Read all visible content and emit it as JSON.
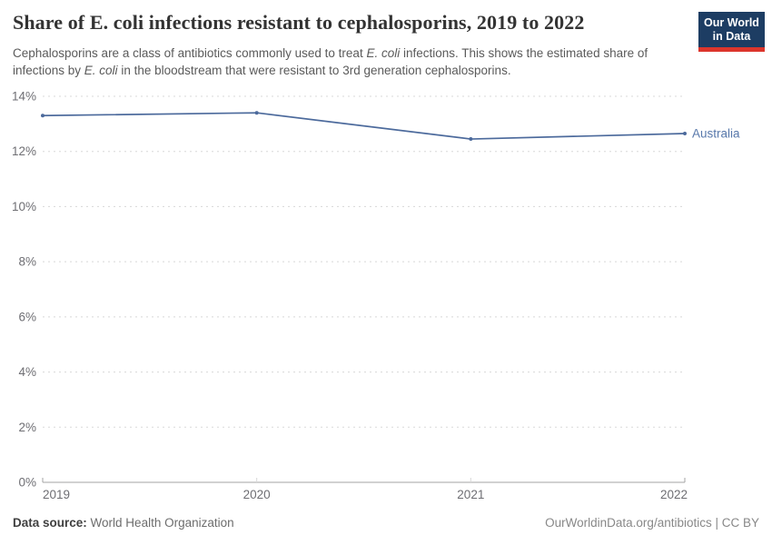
{
  "header": {
    "title": "Share of E. coli infections resistant to cephalosporins, 2019 to 2022",
    "subtitle_segments": [
      {
        "text": "Cephalosporins are a class of antibiotics commonly used to treat ",
        "italic": false
      },
      {
        "text": "E. coli",
        "italic": true
      },
      {
        "text": " infections. This shows the estimated share of infections by ",
        "italic": false
      },
      {
        "text": "E. coli",
        "italic": true
      },
      {
        "text": " in the bloodstream that were resistant to 3rd generation cephalosporins.",
        "italic": false
      }
    ],
    "logo": {
      "line1": "Our World",
      "line2": "in Data",
      "bg_color": "#1d3d63",
      "accent_color": "#dc352c"
    }
  },
  "chart_data": {
    "type": "line",
    "title": "Share of E. coli infections resistant to cephalosporins, 2019 to 2022",
    "x": [
      2019,
      2020,
      2021,
      2022
    ],
    "series": [
      {
        "name": "Australia",
        "values": [
          13.3,
          13.4,
          12.45,
          12.65
        ],
        "color": "#4c6a9c"
      }
    ],
    "xlabel": "",
    "ylabel": "",
    "ylim": [
      0,
      14
    ],
    "yticks": [
      0,
      2,
      4,
      6,
      8,
      10,
      12,
      14
    ],
    "ytick_suffix": "%",
    "xticks": [
      2019,
      2020,
      2021,
      2022
    ],
    "grid": "horizontal-dashed",
    "legend_position": "end-of-line-label",
    "colors": {
      "grid": "#d8d8d8",
      "axis_line": "#a3a3a3",
      "tick_text": "#6e6e73"
    }
  },
  "footer": {
    "source_label": "Data source:",
    "source_value": "World Health Organization",
    "right_text": "OurWorldinData.org/antibiotics | CC BY"
  }
}
